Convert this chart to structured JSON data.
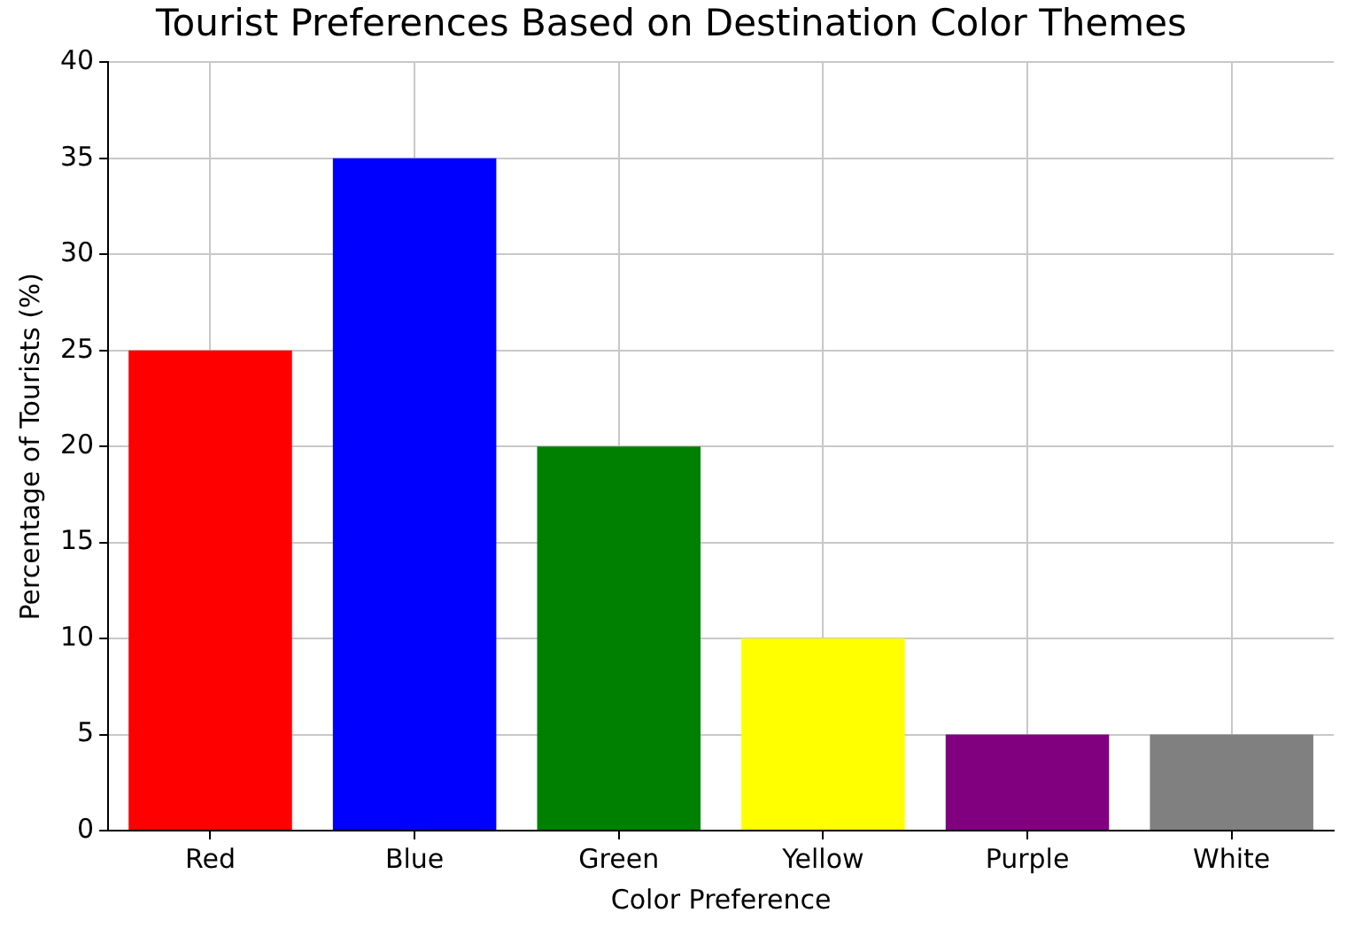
{
  "chart_data": {
    "type": "bar",
    "title": "Tourist Preferences Based on Destination Color Themes",
    "xlabel": "Color Preference",
    "ylabel": "Percentage of Tourists (%)",
    "categories": [
      "Red",
      "Blue",
      "Green",
      "Yellow",
      "Purple",
      "White"
    ],
    "values": [
      25,
      35,
      20,
      10,
      5,
      5
    ],
    "colors": [
      "#ff0000",
      "#0000ff",
      "#008000",
      "#ffff00",
      "#800080",
      "#808080"
    ],
    "ylim": [
      0,
      40
    ],
    "yticks": [
      0,
      5,
      10,
      15,
      20,
      25,
      30,
      35,
      40
    ],
    "grid": true
  }
}
